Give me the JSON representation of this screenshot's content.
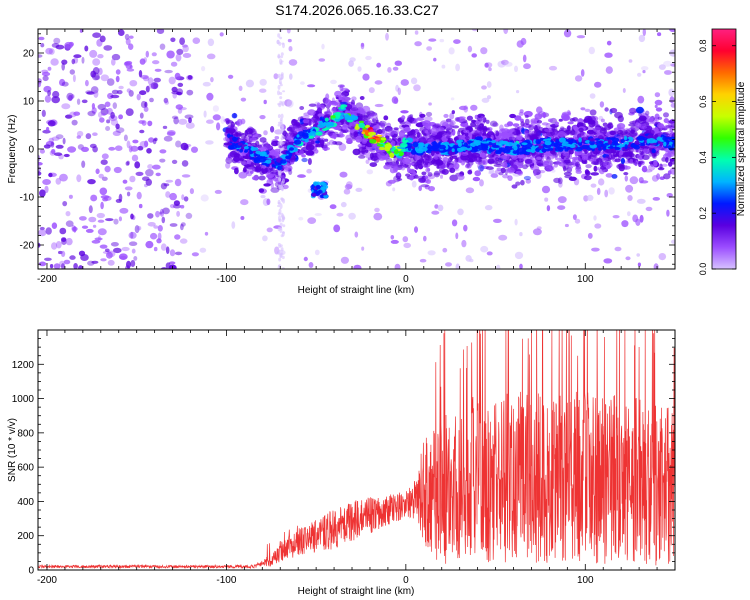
{
  "title": "S174.2026.065.16.33.C27",
  "chart_data": [
    {
      "type": "heatmap",
      "id": "spectrogram",
      "xlabel": "Height of straight line (km)",
      "ylabel": "Frequency (Hz)",
      "xlim": [
        -205,
        150
      ],
      "ylim": [
        -25,
        25
      ],
      "xticks": [
        -200,
        -100,
        0,
        100
      ],
      "yticks": [
        -20,
        -10,
        0,
        10,
        20
      ],
      "colorbar": {
        "label": "Normalized spectral amplitude",
        "range": [
          0.0,
          0.86
        ],
        "ticks": [
          0.0,
          0.2,
          0.4,
          0.6,
          0.8
        ],
        "colors": [
          "#d7c2ff",
          "#9b4dff",
          "#5a00e0",
          "#0018ff",
          "#00b4ff",
          "#00ffb0",
          "#31ff00",
          "#c8ff00",
          "#ffd200",
          "#ff6a00",
          "#ff0030",
          "#ff2080"
        ]
      },
      "signal_track": {
        "description_values_in_data_units": true,
        "x": [
          -100,
          -90,
          -80,
          -70,
          -60,
          -50,
          -45,
          -40,
          -35,
          -30,
          -25,
          -20,
          -15,
          -10,
          -5,
          0,
          10,
          20,
          40,
          60,
          80,
          100,
          120,
          140,
          150
        ],
        "freq": [
          2,
          0,
          -2,
          -3,
          2,
          4,
          5,
          6,
          8,
          6,
          5,
          3,
          2,
          0,
          -1,
          1,
          0,
          0,
          1,
          0,
          1,
          1,
          1,
          2,
          1
        ],
        "amplitude": [
          0.25,
          0.3,
          0.32,
          0.28,
          0.35,
          0.35,
          0.4,
          0.45,
          0.5,
          0.45,
          0.6,
          0.85,
          0.7,
          0.6,
          0.55,
          0.35,
          0.3,
          0.3,
          0.32,
          0.35,
          0.3,
          0.3,
          0.28,
          0.3,
          0.3
        ]
      }
    },
    {
      "type": "line",
      "id": "snr",
      "xlabel": "Height of straight line (km)",
      "ylabel": "SNR (10 * v/v)",
      "xlim": [
        -205,
        150
      ],
      "ylim": [
        0,
        1400
      ],
      "xticks": [
        -200,
        -100,
        0,
        100
      ],
      "yticks": [
        0,
        200,
        400,
        600,
        800,
        1000,
        1200
      ],
      "color": "#ee3333",
      "envelope": {
        "x": [
          -205,
          -150,
          -100,
          -85,
          -80,
          -75,
          -70,
          -60,
          -50,
          -40,
          -30,
          -20,
          -10,
          0,
          5,
          10,
          15,
          20,
          30,
          50,
          80,
          100,
          120,
          150
        ],
        "base": [
          20,
          20,
          20,
          20,
          40,
          60,
          110,
          160,
          200,
          240,
          280,
          320,
          350,
          380,
          420,
          460,
          430,
          480,
          520,
          540,
          540,
          540,
          530,
          500
        ],
        "noise": [
          8,
          8,
          8,
          10,
          20,
          40,
          60,
          80,
          100,
          120,
          120,
          110,
          90,
          80,
          120,
          300,
          400,
          450,
          480,
          500,
          500,
          500,
          500,
          480
        ]
      }
    }
  ]
}
